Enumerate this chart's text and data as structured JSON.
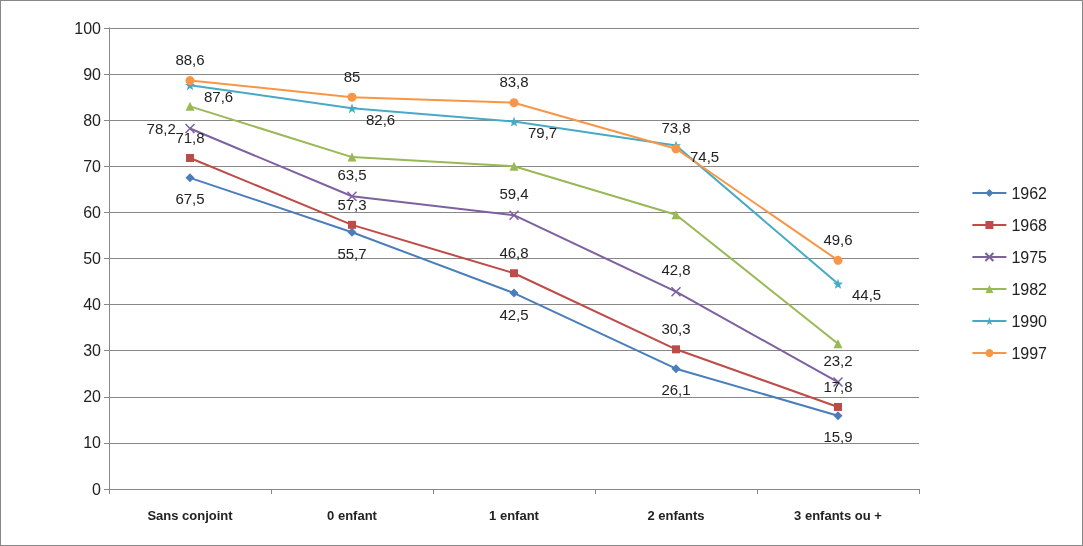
{
  "chart_data": {
    "type": "line",
    "categories": [
      "Sans conjoint",
      "0 enfant",
      "1 enfant",
      "2 enfants",
      "3 enfants ou +"
    ],
    "ylim": [
      0,
      100
    ],
    "yticks": [
      0,
      10,
      20,
      30,
      40,
      50,
      60,
      70,
      80,
      90,
      100
    ],
    "grid": "y",
    "legend": "right",
    "series": [
      {
        "name": "1962",
        "color": "#4a7ebb",
        "marker": "diamond",
        "values": [
          67.5,
          55.7,
          42.5,
          26.1,
          15.9
        ],
        "value_labels": [
          "67,5",
          "55,7",
          "42,5",
          "26,1",
          "15,9"
        ]
      },
      {
        "name": "1968",
        "color": "#be4b48",
        "marker": "square",
        "values": [
          71.8,
          57.3,
          46.8,
          30.3,
          17.8
        ],
        "value_labels": [
          "71,8",
          "57,3",
          "46,8",
          "30,3",
          "17,8"
        ]
      },
      {
        "name": "1975",
        "color": "#7d60a0",
        "marker": "cross",
        "values": [
          78.2,
          63.5,
          59.4,
          42.8,
          23.2
        ],
        "value_labels": [
          "78,2",
          "63,5",
          "59,4",
          "42,8",
          "23,2"
        ]
      },
      {
        "name": "1982",
        "color": "#98b954",
        "marker": "triangle",
        "values": [
          83,
          72,
          70,
          59.5,
          31.5
        ]
      },
      {
        "name": "1990",
        "color": "#46aac5",
        "marker": "star",
        "values": [
          87.6,
          82.6,
          79.7,
          74.5,
          44.5
        ],
        "value_labels": [
          "87,6",
          "82,6",
          "79,7",
          "74,5",
          "44,5"
        ]
      },
      {
        "name": "1997",
        "color": "#f79646",
        "marker": "circle",
        "values": [
          88.6,
          85,
          83.8,
          73.8,
          49.6
        ],
        "value_labels": [
          "88,6",
          "85",
          "83,8",
          "73,8",
          "49,6"
        ]
      }
    ]
  }
}
